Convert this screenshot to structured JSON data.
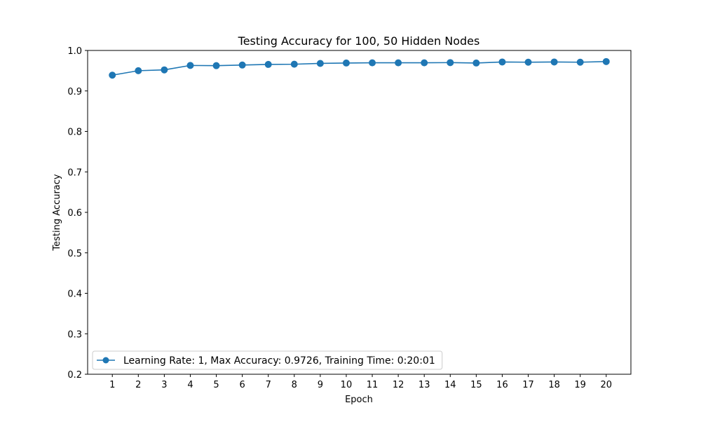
{
  "chart_data": {
    "type": "line",
    "title": "Testing Accuracy for 100, 50 Hidden Nodes",
    "xlabel": "Epoch",
    "ylabel": "Testing Accuracy",
    "xlim": [
      0.05,
      20.95
    ],
    "ylim": [
      0.2,
      1.0
    ],
    "xticks": [
      1,
      2,
      3,
      4,
      5,
      6,
      7,
      8,
      9,
      10,
      11,
      12,
      13,
      14,
      15,
      16,
      17,
      18,
      19,
      20
    ],
    "yticks": [
      0.2,
      0.3,
      0.4,
      0.5,
      0.6,
      0.7,
      0.8,
      0.9,
      1.0
    ],
    "ytick_labels": [
      "0.2",
      "0.3",
      "0.4",
      "0.5",
      "0.6",
      "0.7",
      "0.8",
      "0.9",
      "1.0"
    ],
    "grid": false,
    "legend_position": "lower-left",
    "series": [
      {
        "name": "Learning Rate: 1, Max Accuracy: 0.9726, Training Time: 0:20:01",
        "color": "#1f77b4",
        "marker": "circle",
        "x": [
          1,
          2,
          3,
          4,
          5,
          6,
          7,
          8,
          9,
          10,
          11,
          12,
          13,
          14,
          15,
          16,
          17,
          18,
          19,
          20
        ],
        "y": [
          0.939,
          0.95,
          0.952,
          0.963,
          0.9625,
          0.964,
          0.9655,
          0.966,
          0.968,
          0.969,
          0.9695,
          0.9695,
          0.9695,
          0.97,
          0.969,
          0.9715,
          0.971,
          0.9715,
          0.971,
          0.9726
        ]
      }
    ]
  }
}
